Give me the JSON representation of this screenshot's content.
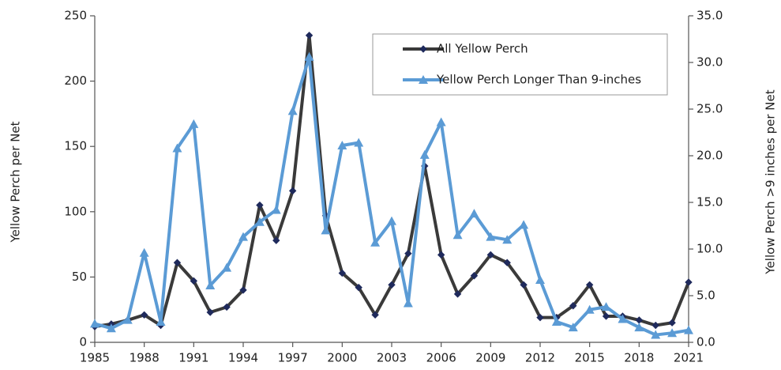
{
  "chart_data": {
    "type": "line",
    "y_label": "Yellow Perch per Net",
    "y2_label": "Yellow Perch >9 inches per Net",
    "x": [
      1985,
      1986,
      1987,
      1988,
      1989,
      1990,
      1991,
      1992,
      1993,
      1994,
      1995,
      1996,
      1997,
      1998,
      1999,
      2000,
      2001,
      2002,
      2003,
      2004,
      2005,
      2006,
      2007,
      2008,
      2009,
      2010,
      2011,
      2012,
      2013,
      2014,
      2015,
      2016,
      2017,
      2018,
      2019,
      2020,
      2021
    ],
    "xlim": [
      1985,
      2021
    ],
    "xticks": [
      1985,
      1988,
      1991,
      1994,
      1997,
      2000,
      2003,
      2006,
      2009,
      2012,
      2015,
      2018,
      2021
    ],
    "ylim": [
      0,
      250
    ],
    "yticks": [
      0,
      50,
      100,
      150,
      200,
      250
    ],
    "y2lim": [
      0,
      35
    ],
    "y2ticks": [
      {
        "value": 0,
        "label": "0.0"
      },
      {
        "value": 5,
        "label": "5.0"
      },
      {
        "value": 10,
        "label": "10.0"
      },
      {
        "value": 15,
        "label": "15.0"
      },
      {
        "value": 20,
        "label": "20.0"
      },
      {
        "value": 25,
        "label": "25.0"
      },
      {
        "value": 30,
        "label": "30.0"
      },
      {
        "value": 35,
        "label": "35.0"
      }
    ],
    "series": [
      {
        "name": "All Yellow Perch",
        "color": "#3a3a3a",
        "marker": "diamond",
        "values": [
          12,
          14,
          17,
          21,
          13,
          61,
          47,
          23,
          27,
          40,
          105,
          78,
          116,
          235,
          97,
          53,
          42,
          21,
          44,
          68,
          135,
          67,
          37,
          51,
          67,
          61,
          44,
          19,
          19,
          28,
          44,
          20,
          20,
          17,
          13,
          15,
          46
        ]
      },
      {
        "name": "Yellow Perch Longer Than 9-inches",
        "color": "#5b9bd5",
        "marker": "triangle",
        "axis": "y2",
        "values": [
          2.0,
          1.5,
          2.4,
          9.6,
          2.2,
          20.8,
          23.4,
          6.1,
          8.0,
          11.3,
          12.9,
          14.2,
          24.8,
          30.6,
          12.0,
          21.1,
          21.4,
          10.7,
          13.0,
          4.2,
          20.1,
          23.6,
          11.5,
          13.8,
          11.3,
          11.0,
          12.6,
          6.7,
          2.2,
          1.6,
          3.5,
          3.8,
          2.5,
          1.6,
          0.8,
          1.0,
          1.3
        ]
      }
    ]
  }
}
